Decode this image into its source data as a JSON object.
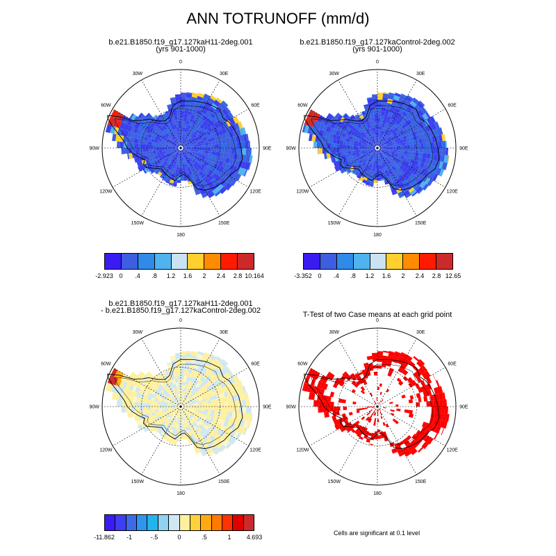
{
  "main_title": "ANN TOTRUNOFF (mm/d)",
  "panels": [
    {
      "line1": "b.e21.B1850.f19_g17.127kaH11-2deg.001",
      "line2": "(yrs 901-1000)"
    },
    {
      "line1": "b.e21.B1850.f19_g17.127kaControl-2deg.002",
      "line2": "(yrs 901-1000)"
    },
    {
      "line1": "b.e21.B1850.f19_g17.127kaH11-2deg.001",
      "line2": "- b.e21.B1850.f19_g17.127kaControl-2deg.002"
    },
    {
      "line1": "T-Test of two Case means at each grid point",
      "line2": ""
    }
  ],
  "lon_labels": [
    "0",
    "30E",
    "60E",
    "90E",
    "120E",
    "150E",
    "180",
    "150W",
    "120W",
    "90W",
    "60W",
    "30W"
  ],
  "colorbars": [
    {
      "colors": [
        "#3a1cf2",
        "#3d5ee0",
        "#2f8ae8",
        "#4fb4ee",
        "#c9e3f2",
        "#ffd02e",
        "#ff8c00",
        "#ff1a00",
        "#cc2a2a"
      ],
      "labels": [
        "-2.923",
        "0",
        ".4",
        ".8",
        "1.2",
        "1.6",
        "2",
        "2.4",
        "2.8",
        "10.164"
      ]
    },
    {
      "colors": [
        "#3a1cf2",
        "#3d5ee0",
        "#2f8ae8",
        "#4fb4ee",
        "#c9e3f2",
        "#ffd02e",
        "#ff8c00",
        "#ff1a00",
        "#cc2a2a"
      ],
      "labels": [
        "-3.352",
        "0",
        ".4",
        ".8",
        "1.2",
        "1.6",
        "2",
        "2.4",
        "2.8",
        "12.65"
      ]
    },
    {
      "colors": [
        "#3a1cf2",
        "#3d3ff0",
        "#3d6ae8",
        "#2f96ee",
        "#22b4ee",
        "#8fd3f0",
        "#cfe8f3",
        "#fff0a0",
        "#ffd23a",
        "#ffaa10",
        "#ff7a00",
        "#ff3300",
        "#e00000",
        "#cc2a2a"
      ],
      "labels": [
        "-11.862",
        "-1",
        "-.5",
        "0",
        ".5",
        "1",
        "4.693"
      ]
    }
  ],
  "significance_note": "Cells are significant at 0.1 level"
}
